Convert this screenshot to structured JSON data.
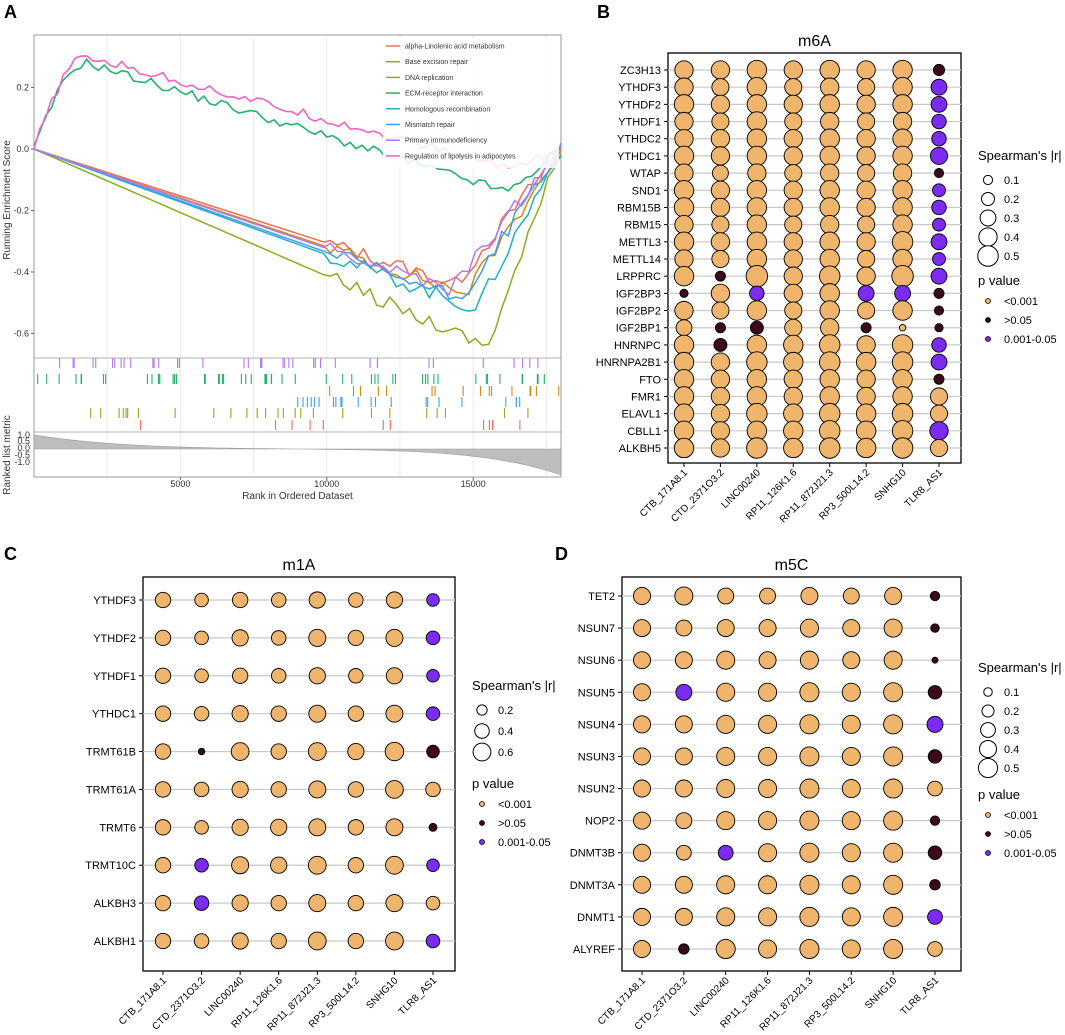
{
  "panels": {
    "A": "A",
    "B": "B",
    "C": "C",
    "D": "D"
  },
  "colors": {
    "high": "#f0b56c",
    "ns": "#3d0a1a",
    "mid": "#7b2cf0",
    "grid": "#c8c8c8"
  },
  "gsea": {
    "ylabel": "Running Enrichment Score",
    "ylabel2": "Ranked list metric",
    "xlabel": "Rank in Ordered Dataset",
    "yticks": [
      0.2,
      0.0,
      -0.2,
      -0.4,
      -0.6
    ],
    "ytick_labels": [
      "0.2",
      "0.0",
      "-0.2",
      "-0.4",
      "-0.6"
    ],
    "xticks": [
      5000,
      10000,
      15000
    ],
    "xtick_labels": [
      "5000",
      "10000",
      "15000"
    ],
    "metric_ticks": [
      "1.0",
      "0.5",
      "0.0",
      "-0.5",
      "-1.0"
    ],
    "n": 18000,
    "series": [
      {
        "name": "alpha-Linolenic acid metabolism",
        "color": "#f26b5b"
      },
      {
        "name": "Base excision repair",
        "color": "#d08a14"
      },
      {
        "name": "DNA replication",
        "color": "#8aae1a"
      },
      {
        "name": "ECM-receptor interaction",
        "color": "#22b46a"
      },
      {
        "name": "Homologous recombination",
        "color": "#1fb0c4"
      },
      {
        "name": "Mismatch repair",
        "color": "#3aa0f0"
      },
      {
        "name": "Primary immunodeficiency",
        "color": "#b577f0"
      },
      {
        "name": "Regulation of lipolysis in adipocytes",
        "color": "#f062c8"
      }
    ]
  },
  "chart_data": [
    {
      "type": "scatter",
      "title": "m6A",
      "columns": [
        "CTB_171A8.1",
        "CTD_2371O3.2",
        "LINC00240",
        "RP11_126K1.6",
        "RP11_872J21.3",
        "RP3_500L14.2",
        "SNHG10",
        "TLR8_AS1"
      ],
      "rows": [
        "ZC3H13",
        "YTHDF3",
        "YTHDF2",
        "YTHDF1",
        "YTHDC2",
        "YTHDC1",
        "WTAP",
        "SND1",
        "RBM15B",
        "RBM15",
        "METTL3",
        "METTL14",
        "LRPPRC",
        "IGF2BP3",
        "IGF2BP2",
        "IGF2BP1",
        "HNRNPC",
        "HNRNPA2B1",
        "FTO",
        "FMR1",
        "ELAVL1",
        "CBLL1",
        "ALKBH5"
      ],
      "size": [
        [
          0.4,
          0.4,
          0.45,
          0.4,
          0.45,
          0.4,
          0.45,
          0.15
        ],
        [
          0.4,
          0.35,
          0.45,
          0.35,
          0.4,
          0.35,
          0.45,
          0.3
        ],
        [
          0.45,
          0.4,
          0.45,
          0.4,
          0.45,
          0.4,
          0.45,
          0.3
        ],
        [
          0.4,
          0.35,
          0.45,
          0.35,
          0.4,
          0.35,
          0.4,
          0.25
        ],
        [
          0.4,
          0.4,
          0.45,
          0.4,
          0.45,
          0.4,
          0.45,
          0.25
        ],
        [
          0.45,
          0.4,
          0.45,
          0.4,
          0.45,
          0.4,
          0.45,
          0.35
        ],
        [
          0.4,
          0.3,
          0.4,
          0.35,
          0.4,
          0.35,
          0.4,
          0.1
        ],
        [
          0.45,
          0.4,
          0.45,
          0.4,
          0.45,
          0.4,
          0.45,
          0.2
        ],
        [
          0.45,
          0.4,
          0.45,
          0.4,
          0.45,
          0.4,
          0.45,
          0.25
        ],
        [
          0.4,
          0.35,
          0.45,
          0.35,
          0.4,
          0.35,
          0.45,
          0.2
        ],
        [
          0.45,
          0.4,
          0.45,
          0.4,
          0.45,
          0.4,
          0.5,
          0.3
        ],
        [
          0.4,
          0.35,
          0.45,
          0.4,
          0.45,
          0.35,
          0.45,
          0.2
        ],
        [
          0.45,
          0.12,
          0.55,
          0.4,
          0.5,
          0.4,
          0.55,
          0.3
        ],
        [
          0.08,
          0.4,
          0.25,
          0.4,
          0.45,
          0.3,
          0.3,
          0.12
        ],
        [
          0.4,
          0.35,
          0.45,
          0.35,
          0.45,
          0.35,
          0.45,
          0.1
        ],
        [
          0.3,
          0.12,
          0.2,
          0.35,
          0.4,
          0.12,
          0.05,
          0.08
        ],
        [
          0.45,
          0.2,
          0.45,
          0.45,
          0.5,
          0.4,
          0.5,
          0.25
        ],
        [
          0.45,
          0.4,
          0.5,
          0.45,
          0.5,
          0.45,
          0.5,
          0.3
        ],
        [
          0.45,
          0.4,
          0.45,
          0.4,
          0.45,
          0.4,
          0.45,
          0.12
        ],
        [
          0.45,
          0.4,
          0.45,
          0.4,
          0.45,
          0.4,
          0.45,
          0.35
        ],
        [
          0.45,
          0.4,
          0.5,
          0.45,
          0.5,
          0.45,
          0.5,
          0.35
        ],
        [
          0.45,
          0.4,
          0.45,
          0.45,
          0.5,
          0.45,
          0.5,
          0.4
        ],
        [
          0.45,
          0.4,
          0.5,
          0.45,
          0.5,
          0.45,
          0.5,
          0.35
        ]
      ],
      "pvalue": [
        [
          "<0.001",
          "<0.001",
          "<0.001",
          "<0.001",
          "<0.001",
          "<0.001",
          "<0.001",
          ">0.05"
        ],
        [
          "<0.001",
          "<0.001",
          "<0.001",
          "<0.001",
          "<0.001",
          "<0.001",
          "<0.001",
          "0.001-0.05"
        ],
        [
          "<0.001",
          "<0.001",
          "<0.001",
          "<0.001",
          "<0.001",
          "<0.001",
          "<0.001",
          "0.001-0.05"
        ],
        [
          "<0.001",
          "<0.001",
          "<0.001",
          "<0.001",
          "<0.001",
          "<0.001",
          "<0.001",
          "0.001-0.05"
        ],
        [
          "<0.001",
          "<0.001",
          "<0.001",
          "<0.001",
          "<0.001",
          "<0.001",
          "<0.001",
          "0.001-0.05"
        ],
        [
          "<0.001",
          "<0.001",
          "<0.001",
          "<0.001",
          "<0.001",
          "<0.001",
          "<0.001",
          "0.001-0.05"
        ],
        [
          "<0.001",
          "<0.001",
          "<0.001",
          "<0.001",
          "<0.001",
          "<0.001",
          "<0.001",
          ">0.05"
        ],
        [
          "<0.001",
          "<0.001",
          "<0.001",
          "<0.001",
          "<0.001",
          "<0.001",
          "<0.001",
          "0.001-0.05"
        ],
        [
          "<0.001",
          "<0.001",
          "<0.001",
          "<0.001",
          "<0.001",
          "<0.001",
          "<0.001",
          "0.001-0.05"
        ],
        [
          "<0.001",
          "<0.001",
          "<0.001",
          "<0.001",
          "<0.001",
          "<0.001",
          "<0.001",
          "0.001-0.05"
        ],
        [
          "<0.001",
          "<0.001",
          "<0.001",
          "<0.001",
          "<0.001",
          "<0.001",
          "<0.001",
          "0.001-0.05"
        ],
        [
          "<0.001",
          "<0.001",
          "<0.001",
          "<0.001",
          "<0.001",
          "<0.001",
          "<0.001",
          "0.001-0.05"
        ],
        [
          "<0.001",
          ">0.05",
          "<0.001",
          "<0.001",
          "<0.001",
          "<0.001",
          "<0.001",
          "0.001-0.05"
        ],
        [
          ">0.05",
          "<0.001",
          "0.001-0.05",
          "<0.001",
          "<0.001",
          "0.001-0.05",
          "0.001-0.05",
          ">0.05"
        ],
        [
          "<0.001",
          "<0.001",
          "<0.001",
          "<0.001",
          "<0.001",
          "<0.001",
          "<0.001",
          ">0.05"
        ],
        [
          "<0.001",
          ">0.05",
          ">0.05",
          "<0.001",
          "<0.001",
          ">0.05",
          "<0.001",
          ">0.05"
        ],
        [
          "<0.001",
          ">0.05",
          "<0.001",
          "<0.001",
          "<0.001",
          "<0.001",
          "<0.001",
          "0.001-0.05"
        ],
        [
          "<0.001",
          "<0.001",
          "<0.001",
          "<0.001",
          "<0.001",
          "<0.001",
          "<0.001",
          "0.001-0.05"
        ],
        [
          "<0.001",
          "<0.001",
          "<0.001",
          "<0.001",
          "<0.001",
          "<0.001",
          "<0.001",
          ">0.05"
        ],
        [
          "<0.001",
          "<0.001",
          "<0.001",
          "<0.001",
          "<0.001",
          "<0.001",
          "<0.001",
          "<0.001"
        ],
        [
          "<0.001",
          "<0.001",
          "<0.001",
          "<0.001",
          "<0.001",
          "<0.001",
          "<0.001",
          "<0.001"
        ],
        [
          "<0.001",
          "<0.001",
          "<0.001",
          "<0.001",
          "<0.001",
          "<0.001",
          "<0.001",
          "0.001-0.05"
        ],
        [
          "<0.001",
          "<0.001",
          "<0.001",
          "<0.001",
          "<0.001",
          "<0.001",
          "<0.001",
          "<0.001"
        ]
      ],
      "size_legend_title": "Spearman's |r|",
      "size_legend": [
        0.1,
        0.2,
        0.3,
        0.4,
        0.5
      ],
      "size_legend_labels": [
        "0.1",
        "0.2",
        "0.3",
        "0.4",
        "0.5"
      ],
      "p_legend_title": "p value",
      "p_legend": [
        "<0.001",
        ">0.05",
        "0.001-0.05"
      ]
    },
    {
      "type": "scatter",
      "title": "m1A",
      "columns": [
        "CTB_171A8.1",
        "CTD_2371O3.2",
        "LINC00240",
        "RP11_126K1.6",
        "RP11_872J21.3",
        "RP3_500L14.2",
        "SNHG10",
        "TLR8_AS1"
      ],
      "rows": [
        "YTHDF3",
        "YTHDF2",
        "YTHDF1",
        "YTHDC1",
        "TRMT61B",
        "TRMT61A",
        "TRMT6",
        "TRMT10C",
        "ALKBH3",
        "ALKBH1"
      ],
      "size": [
        [
          0.45,
          0.35,
          0.45,
          0.4,
          0.5,
          0.4,
          0.5,
          0.3
        ],
        [
          0.45,
          0.35,
          0.5,
          0.4,
          0.55,
          0.45,
          0.55,
          0.35
        ],
        [
          0.45,
          0.35,
          0.45,
          0.4,
          0.5,
          0.4,
          0.5,
          0.3
        ],
        [
          0.45,
          0.4,
          0.5,
          0.45,
          0.55,
          0.45,
          0.55,
          0.35
        ],
        [
          0.45,
          0.08,
          0.6,
          0.45,
          0.6,
          0.5,
          0.65,
          0.3
        ],
        [
          0.45,
          0.4,
          0.5,
          0.45,
          0.55,
          0.45,
          0.6,
          0.4
        ],
        [
          0.45,
          0.35,
          0.5,
          0.5,
          0.55,
          0.45,
          0.55,
          0.12
        ],
        [
          0.45,
          0.35,
          0.55,
          0.5,
          0.6,
          0.45,
          0.6,
          0.3
        ],
        [
          0.45,
          0.4,
          0.5,
          0.45,
          0.55,
          0.45,
          0.55,
          0.35
        ],
        [
          0.45,
          0.4,
          0.5,
          0.45,
          0.6,
          0.45,
          0.6,
          0.35
        ]
      ],
      "pvalue": [
        [
          "<0.001",
          "<0.001",
          "<0.001",
          "<0.001",
          "<0.001",
          "<0.001",
          "<0.001",
          "0.001-0.05"
        ],
        [
          "<0.001",
          "<0.001",
          "<0.001",
          "<0.001",
          "<0.001",
          "<0.001",
          "<0.001",
          "0.001-0.05"
        ],
        [
          "<0.001",
          "<0.001",
          "<0.001",
          "<0.001",
          "<0.001",
          "<0.001",
          "<0.001",
          "0.001-0.05"
        ],
        [
          "<0.001",
          "<0.001",
          "<0.001",
          "<0.001",
          "<0.001",
          "<0.001",
          "<0.001",
          "0.001-0.05"
        ],
        [
          "<0.001",
          ">0.05",
          "<0.001",
          "<0.001",
          "<0.001",
          "<0.001",
          "<0.001",
          ">0.05"
        ],
        [
          "<0.001",
          "<0.001",
          "<0.001",
          "<0.001",
          "<0.001",
          "<0.001",
          "<0.001",
          "<0.001"
        ],
        [
          "<0.001",
          "<0.001",
          "<0.001",
          "<0.001",
          "<0.001",
          "<0.001",
          "<0.001",
          ">0.05"
        ],
        [
          "<0.001",
          "0.001-0.05",
          "<0.001",
          "<0.001",
          "<0.001",
          "<0.001",
          "<0.001",
          "0.001-0.05"
        ],
        [
          "<0.001",
          "0.001-0.05",
          "<0.001",
          "<0.001",
          "<0.001",
          "<0.001",
          "<0.001",
          "<0.001"
        ],
        [
          "<0.001",
          "<0.001",
          "<0.001",
          "<0.001",
          "<0.001",
          "<0.001",
          "<0.001",
          "0.001-0.05"
        ]
      ],
      "size_legend_title": "Spearman's |r|",
      "size_legend": [
        0.2,
        0.4,
        0.6
      ],
      "size_legend_labels": [
        "0.2",
        "0.4",
        "0.6"
      ],
      "p_legend_title": "p value",
      "p_legend": [
        "<0.001",
        ">0.05",
        "0.001-0.05"
      ]
    },
    {
      "type": "scatter",
      "title": "m5C",
      "columns": [
        "CTB_171A8.1",
        "CTD_2371O3.2",
        "LINC00240",
        "RP11_126K1.6",
        "RP11_872J21.3",
        "RP3_500L14.2",
        "SNHG10",
        "TLR8_AS1"
      ],
      "rows": [
        "TET2",
        "NSUN7",
        "NSUN6",
        "NSUN5",
        "NSUN4",
        "NSUN3",
        "NSUN2",
        "NOP2",
        "DNMT3B",
        "DNMT3A",
        "DNMT1",
        "ALYREF"
      ],
      "size": [
        [
          0.4,
          0.45,
          0.35,
          0.35,
          0.4,
          0.35,
          0.4,
          0.12
        ],
        [
          0.4,
          0.35,
          0.4,
          0.4,
          0.45,
          0.4,
          0.45,
          0.1
        ],
        [
          0.4,
          0.4,
          0.45,
          0.4,
          0.45,
          0.4,
          0.45,
          0.05
        ],
        [
          0.4,
          0.35,
          0.45,
          0.45,
          0.5,
          0.45,
          0.5,
          0.25
        ],
        [
          0.4,
          0.4,
          0.45,
          0.45,
          0.5,
          0.45,
          0.5,
          0.35
        ],
        [
          0.4,
          0.4,
          0.45,
          0.45,
          0.5,
          0.45,
          0.5,
          0.25
        ],
        [
          0.4,
          0.4,
          0.45,
          0.45,
          0.5,
          0.45,
          0.5,
          0.3
        ],
        [
          0.4,
          0.35,
          0.45,
          0.45,
          0.5,
          0.45,
          0.5,
          0.12
        ],
        [
          0.4,
          0.3,
          0.3,
          0.45,
          0.5,
          0.45,
          0.5,
          0.25
        ],
        [
          0.4,
          0.4,
          0.45,
          0.45,
          0.5,
          0.45,
          0.5,
          0.15
        ],
        [
          0.4,
          0.4,
          0.45,
          0.45,
          0.5,
          0.45,
          0.5,
          0.3
        ],
        [
          0.4,
          0.15,
          0.5,
          0.45,
          0.5,
          0.45,
          0.5,
          0.3
        ]
      ],
      "pvalue": [
        [
          "<0.001",
          "<0.001",
          "<0.001",
          "<0.001",
          "<0.001",
          "<0.001",
          "<0.001",
          ">0.05"
        ],
        [
          "<0.001",
          "<0.001",
          "<0.001",
          "<0.001",
          "<0.001",
          "<0.001",
          "<0.001",
          ">0.05"
        ],
        [
          "<0.001",
          "<0.001",
          "<0.001",
          "<0.001",
          "<0.001",
          "<0.001",
          "<0.001",
          ">0.05"
        ],
        [
          "<0.001",
          "0.001-0.05",
          "<0.001",
          "<0.001",
          "<0.001",
          "<0.001",
          "<0.001",
          ">0.05"
        ],
        [
          "<0.001",
          "<0.001",
          "<0.001",
          "<0.001",
          "<0.001",
          "<0.001",
          "<0.001",
          "0.001-0.05"
        ],
        [
          "<0.001",
          "<0.001",
          "<0.001",
          "<0.001",
          "<0.001",
          "<0.001",
          "<0.001",
          ">0.05"
        ],
        [
          "<0.001",
          "<0.001",
          "<0.001",
          "<0.001",
          "<0.001",
          "<0.001",
          "<0.001",
          "<0.001"
        ],
        [
          "<0.001",
          "<0.001",
          "<0.001",
          "<0.001",
          "<0.001",
          "<0.001",
          "<0.001",
          ">0.05"
        ],
        [
          "<0.001",
          "<0.001",
          "0.001-0.05",
          "<0.001",
          "<0.001",
          "<0.001",
          "<0.001",
          ">0.05"
        ],
        [
          "<0.001",
          "<0.001",
          "<0.001",
          "<0.001",
          "<0.001",
          "<0.001",
          "<0.001",
          ">0.05"
        ],
        [
          "<0.001",
          "<0.001",
          "<0.001",
          "<0.001",
          "<0.001",
          "<0.001",
          "<0.001",
          "0.001-0.05"
        ],
        [
          "<0.001",
          ">0.05",
          "<0.001",
          "<0.001",
          "<0.001",
          "<0.001",
          "<0.001",
          "<0.001"
        ]
      ],
      "size_legend_title": "Spearman's |r|",
      "size_legend": [
        0.1,
        0.2,
        0.3,
        0.4,
        0.5
      ],
      "size_legend_labels": [
        "0.1",
        "0.2",
        "0.3",
        "0.4",
        "0.5"
      ],
      "p_legend_title": "p value",
      "p_legend": [
        "<0.001",
        ">0.05",
        "0.001-0.05"
      ]
    }
  ]
}
